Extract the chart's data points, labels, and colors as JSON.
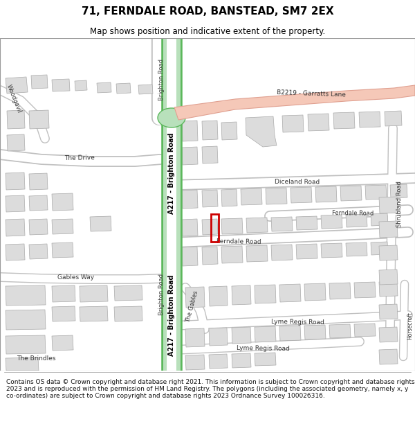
{
  "title": "71, FERNDALE ROAD, BANSTEAD, SM7 2EX",
  "subtitle": "Map shows position and indicative extent of the property.",
  "footer": "Contains OS data © Crown copyright and database right 2021. This information is subject to Crown copyright and database rights 2023 and is reproduced with the permission of HM Land Registry. The polygons (including the associated geometry, namely x, y co-ordinates) are subject to Crown copyright and database rights 2023 Ordnance Survey 100026316.",
  "bg_color": "#ffffff",
  "map_bg": "#f0eeea",
  "road_color": "#ffffff",
  "road_outline": "#c8c8c8",
  "building_fill": "#dcdcdc",
  "building_outline": "#aaaaaa",
  "a217_fill": "#b8e0bb",
  "a217_stroke": "#5cb85c",
  "b2219_fill": "#f5c8b8",
  "b2219_stroke": "#e0a090",
  "property_color": "#cc0000",
  "label_color": "#333333",
  "title_fontsize": 11,
  "subtitle_fontsize": 8.5,
  "footer_fontsize": 6.5
}
